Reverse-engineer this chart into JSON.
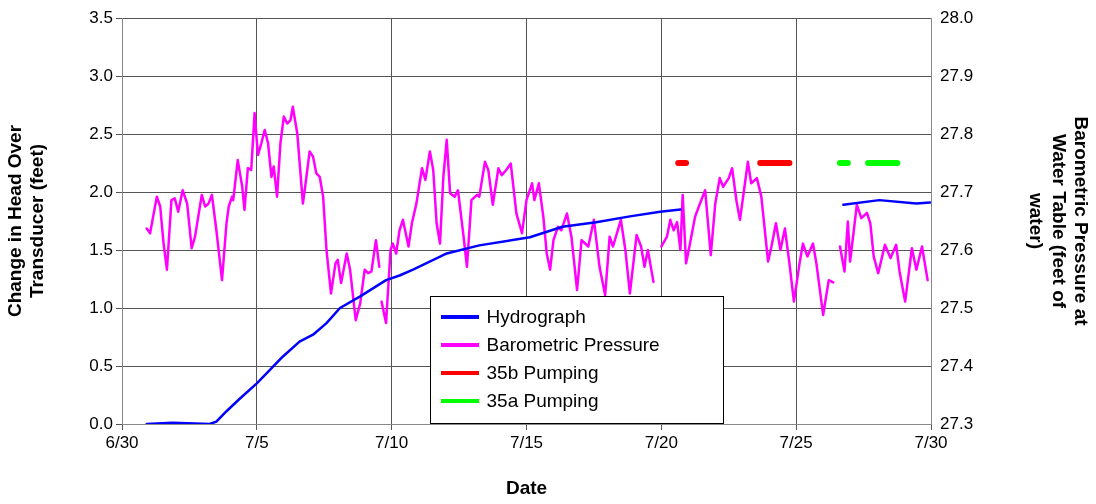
{
  "chart_data": {
    "type": "line",
    "xlabel": "Date",
    "ylabel": "Change in Head Over Transducer (feet)",
    "y2label": "Barometric Pressure at Water Table (feet of water)",
    "xlim": [
      "--06-30",
      "--07-30"
    ],
    "xticks": [
      {
        "value": "--06-30",
        "label": "6/30"
      },
      {
        "value": "--07-05",
        "label": "7/5"
      },
      {
        "value": "--07-10",
        "label": "7/10"
      },
      {
        "value": "--07-15",
        "label": "7/15"
      },
      {
        "value": "--07-20",
        "label": "7/20"
      },
      {
        "value": "--07-25",
        "label": "7/25"
      },
      {
        "value": "--07-30",
        "label": "7/30"
      }
    ],
    "ylim": [
      0,
      3.5
    ],
    "yticks": [
      {
        "value": 0,
        "label": "0.0"
      },
      0.5,
      {
        "value": 1,
        "label": "1.0"
      },
      1.5,
      {
        "value": 2,
        "label": "2.0"
      },
      2.5,
      {
        "value": 3,
        "label": "3.0"
      },
      3.5
    ],
    "y2lim": [
      27.3,
      28.0
    ],
    "y2ticks": [
      27.3,
      27.4,
      27.5,
      27.6,
      27.7,
      27.8,
      27.9,
      {
        "value": 28,
        "label": "28.0"
      }
    ],
    "grid": true,
    "legend": "bottom",
    "series": [
      {
        "name": "Hydrograph",
        "color": "#0000ff",
        "x": [
          "--06-30T22:00",
          "--07-01T21:00",
          "--07-03T06:00",
          "--07-03T12:00",
          "--07-03T21:00",
          "--07-04T09:00",
          "--07-05T00:00",
          "--07-05T14:00",
          "--07-05T23:00",
          "--07-06T14:00",
          "--07-07T02:00",
          "--07-07T14:00",
          "--07-08T02:00",
          "--07-08T20:00",
          "--07-09T19:00",
          "--07-10T07:00",
          "--07-10T19:00",
          "--07-12T01:00",
          "--07-13T06:00",
          "--07-15T03:00",
          "--07-16T08:00",
          "--07-17T14:00",
          "--07-18T20:00",
          "--07-19T23:00",
          "--07-20T17:00",
          "--07-20T20:00",
          "--07-26T18:00",
          "--07-28T02:00",
          "--07-29T11:00",
          "--07-29T23:00"
        ],
        "values": [
          0,
          0.01,
          0,
          0.02,
          0.11,
          0.22,
          0.35,
          0.49,
          0.58,
          0.71,
          0.77,
          0.87,
          1.0,
          1.1,
          1.24,
          1.28,
          1.33,
          1.47,
          1.54,
          1.61,
          1.7,
          1.74,
          1.79,
          1.83,
          1.85,
          null,
          1.89,
          1.93,
          1.9,
          1.91
        ]
      },
      {
        "name": "Barometric Pressure",
        "color": "#ff00ff",
        "axis": "y2",
        "x": [
          "--06-30T22:00",
          "--07-01T01:00",
          "--07-01T07:00",
          "--07-01T10:00",
          "--07-01T13:00",
          "--07-01T16:00",
          "--07-01T20:00",
          "--07-01T23:00",
          "--07-02T02:00",
          "--07-02T06:00",
          "--07-02T10:00",
          "--07-02T14:00",
          "--07-02T17:00",
          "--07-02T23:00",
          "--07-03T02:00",
          "--07-03T05:00",
          "--07-03T08:00",
          "--07-03T12:00",
          "--07-03T17:00",
          "--07-03T21:00",
          "--07-03T23:00",
          "--07-04T02:00",
          "--07-04T03:00",
          "--07-04T07:00",
          "--07-04T11:00",
          "--07-04T13:00",
          "--07-04T16:00",
          "--07-04T19:00",
          "--07-04T22:00",
          "--07-05T01:00",
          "--07-05T04:00",
          "--07-05T07:00",
          "--07-05T10:00",
          "--07-05T13:00",
          "--07-05T15:00",
          "--07-05T18:00",
          "--07-05T21:00",
          "--07-06T00:00",
          "--07-06T03:00",
          "--07-06T06:00",
          "--07-06T08:00",
          "--07-06T12:00",
          "--07-06T17:00",
          "--07-06T19:00",
          "--07-06T23:00",
          "--07-07T02:00",
          "--07-07T05:00",
          "--07-07T08:00",
          "--07-07T11:00",
          "--07-07T14:00",
          "--07-07T18:00",
          "--07-07T22:00",
          "--07-08T00:00",
          "--07-08T03:00",
          "--07-08T08:00",
          "--07-08T11:00",
          "--07-08T16:00",
          "--07-08T20:00",
          "--07-09T00:00",
          "--07-09T03:00",
          "--07-09T06:00",
          "--07-09T10:00",
          "--07-09T13:00",
          "--07-09T14:00",
          "--07-09T15:00",
          "--07-09T19:00",
          "--07-09T23:00",
          "--07-10T01:00",
          "--07-10T04:00",
          "--07-10T07:00",
          "--07-10T10:00",
          "--07-10T15:00",
          "--07-10T18:00",
          "--07-10T22:00",
          "--07-11T03:00",
          "--07-11T06:00",
          "--07-11T10:00",
          "--07-11T13:00",
          "--07-11T16:00",
          "--07-11T19:00",
          "--07-11T22:00",
          "--07-12T01:00",
          "--07-12T04:00",
          "--07-12T08:00",
          "--07-12T11:00",
          "--07-12T16:00",
          "--07-12T19:00",
          "--07-12T23:00",
          "--07-13T04:00",
          "--07-13T06:00",
          "--07-13T11:00",
          "--07-13T14:00",
          "--07-13T18:00",
          "--07-13T23:00",
          "--07-14T02:00",
          "--07-14T06:00",
          "--07-14T10:00",
          "--07-14T15:00",
          "--07-14T20:00",
          "--07-15T00:00",
          "--07-15T05:00",
          "--07-15T07:00",
          "--07-15T11:00",
          "--07-15T15:00",
          "--07-15T18:00",
          "--07-15T21:00",
          "--07-16T00:00",
          "--07-16T04:00",
          "--07-16T07:00",
          "--07-16T12:00",
          "--07-16T16:00",
          "--07-16T21:00",
          "--07-17T01:00",
          "--07-17T07:00",
          "--07-17T12:00",
          "--07-17T17:00",
          "--07-17T22:00",
          "--07-18T02:00",
          "--07-18T05:00",
          "--07-18T12:00",
          "--07-18T16:00",
          "--07-18T20:00",
          "--07-19T02:00",
          "--07-19T06:00",
          "--07-19T09:00",
          "--07-19T12:00",
          "--07-19T17:00",
          "--07-19T22:00",
          "--07-20T00:00",
          "--07-20T05:00",
          "--07-20T08:00",
          "--07-20T11:00",
          "--07-20T14:00",
          "--07-20T17:00",
          "--07-20T19:00",
          "--07-20T22:00",
          "--07-21T01:00",
          "--07-21T06:00",
          "--07-21T10:00",
          "--07-21T15:00",
          "--07-21T20:00",
          "--07-22T00:00",
          "--07-22T04:00",
          "--07-22T07:00",
          "--07-22T12:00",
          "--07-22T15:00",
          "--07-22T19:00",
          "--07-22T22:00",
          "--07-23T02:00",
          "--07-23T05:00",
          "--07-23T08:00",
          "--07-23T13:00",
          "--07-23T17:00",
          "--07-23T23:00",
          "--07-24T02:00",
          "--07-24T06:00",
          "--07-24T10:00",
          "--07-24T14:00",
          "--07-24T18:00",
          "--07-24T22:00",
          "--07-25T03:00",
          "--07-25T06:00",
          "--07-25T10:00",
          "--07-25T15:00",
          "--07-25T18:00",
          "--07-26T00:00",
          "--07-26T05:00",
          "--07-26T09:00",
          "--07-26T11:00",
          "--07-26T15:00",
          "--07-26T19:00",
          "--07-26T22:00",
          "--07-27T00:00",
          "--07-27T06:00",
          "--07-27T10:00",
          "--07-27T15:00",
          "--07-27T18:00",
          "--07-27T21:00",
          "--07-28T01:00",
          "--07-28T07:00",
          "--07-28T12:00",
          "--07-28T17:00",
          "--07-28T20:00",
          "--07-29T01:00",
          "--07-29T07:00",
          "--07-29T11:00",
          "--07-29T16:00",
          "--07-29T21:00"
        ],
        "values": [
          27.637,
          27.629,
          27.692,
          27.675,
          27.611,
          27.566,
          27.686,
          27.689,
          27.666,
          27.703,
          27.68,
          27.603,
          27.623,
          27.695,
          27.675,
          27.68,
          27.695,
          27.634,
          27.548,
          27.646,
          27.675,
          27.692,
          27.686,
          27.755,
          27.709,
          27.669,
          27.741,
          27.738,
          27.836,
          27.764,
          27.784,
          27.807,
          27.784,
          27.726,
          27.744,
          27.692,
          27.784,
          27.83,
          27.818,
          27.824,
          27.847,
          27.801,
          27.68,
          27.709,
          27.77,
          27.761,
          27.732,
          27.726,
          27.692,
          27.6,
          27.525,
          27.577,
          27.583,
          27.543,
          27.594,
          27.566,
          27.479,
          27.508,
          27.566,
          27.56,
          27.563,
          27.617,
          27.571,
          null,
          27.511,
          27.474,
          27.6,
          27.611,
          27.594,
          27.634,
          27.652,
          27.606,
          27.646,
          27.68,
          27.741,
          27.721,
          27.77,
          27.738,
          27.646,
          27.611,
          27.726,
          27.79,
          27.698,
          27.692,
          27.703,
          27.623,
          27.571,
          27.686,
          27.695,
          27.692,
          27.752,
          27.738,
          27.678,
          27.741,
          27.729,
          27.738,
          27.749,
          27.663,
          27.629,
          27.686,
          27.715,
          27.686,
          27.715,
          27.657,
          27.594,
          27.566,
          27.617,
          27.64,
          27.634,
          27.663,
          27.623,
          27.531,
          27.617,
          27.606,
          27.652,
          27.571,
          27.522,
          27.623,
          27.606,
          27.652,
          27.6,
          27.525,
          27.626,
          27.606,
          27.571,
          27.6,
          27.545,
          null,
          27.606,
          27.623,
          27.652,
          27.634,
          27.648,
          27.6,
          27.695,
          27.577,
          27.606,
          27.657,
          27.678,
          27.703,
          27.591,
          27.68,
          27.724,
          27.709,
          27.724,
          27.741,
          27.683,
          27.652,
          27.709,
          27.752,
          27.715,
          27.724,
          27.692,
          27.58,
          27.606,
          27.646,
          27.6,
          27.637,
          27.577,
          27.511,
          27.577,
          27.611,
          27.589,
          27.611,
          27.577,
          27.488,
          27.548,
          27.544,
          null,
          27.606,
          27.563,
          27.649,
          27.58,
          27.678,
          27.655,
          27.664,
          27.646,
          27.589,
          27.56,
          27.609,
          27.586,
          27.609,
          27.563,
          27.511,
          27.603,
          27.566,
          27.606,
          27.548
        ]
      },
      {
        "name": "35b Pumping",
        "color": "#ff0000",
        "x": [
          "--07-20T15:00",
          "--07-20T22:00",
          "--07-21T12:00",
          "--07-23T16:00",
          "--07-24T18:00"
        ],
        "values": [
          2.25,
          2.25,
          null,
          2.25,
          2.25
        ]
      },
      {
        "name": "35a Pumping",
        "color": "#00ff00",
        "x": [
          "--07-26T15:00",
          "--07-26T22:00",
          "--07-27T07:00",
          "--07-27T16:00",
          "--07-28T18:00"
        ],
        "values": [
          2.25,
          2.25,
          null,
          2.25,
          2.25
        ]
      }
    ]
  }
}
